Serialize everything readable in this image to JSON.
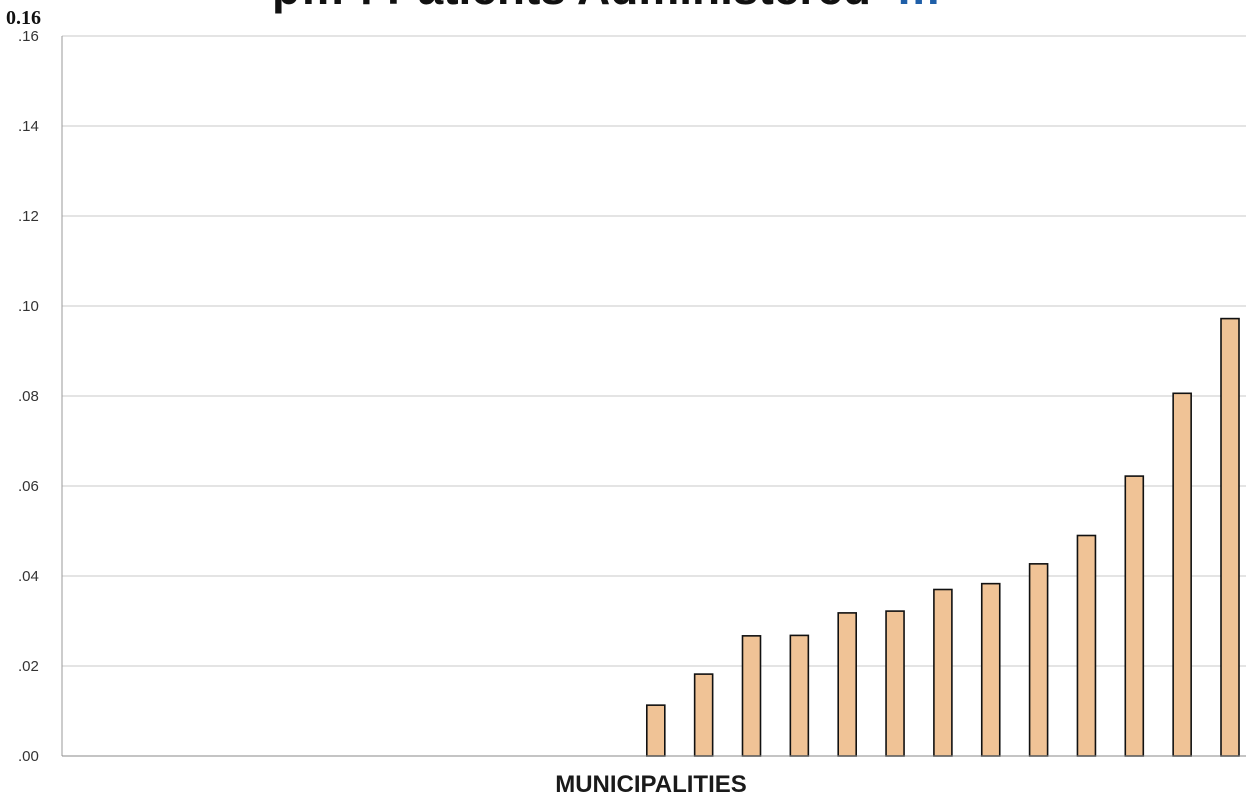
{
  "page": {
    "corner_label": "0.16"
  },
  "chart_data": {
    "type": "bar",
    "title_fragments": {
      "main": "p… f Patients Administered",
      "accent": "…"
    },
    "xlabel": "MUNICIPALITIES",
    "ylabel": "",
    "ylim": [
      0,
      0.16
    ],
    "y_ticks": [
      0,
      0.02,
      0.04,
      0.06,
      0.08,
      0.1,
      0.12,
      0.14,
      0.16
    ],
    "y_tick_labels": [
      ".00",
      ".02",
      ".04",
      ".06",
      ".08",
      ".10",
      ".12",
      ".14",
      ".16"
    ],
    "category_count": 25,
    "values": [
      0,
      0,
      0,
      0,
      0,
      0,
      0,
      0,
      0,
      0,
      0,
      0,
      0.0113,
      0.0182,
      0.0267,
      0.0268,
      0.0318,
      0.0322,
      0.037,
      0.0383,
      0.0427,
      0.049,
      0.0622,
      0.0806,
      0.0972
    ],
    "grid": true,
    "legend": "none",
    "colors": {
      "bar_fill": "#f0c396",
      "bar_stroke": "#111111",
      "grid": "#c8c8c8",
      "title": "#111111",
      "title_accent": "#1f5fa8"
    }
  }
}
